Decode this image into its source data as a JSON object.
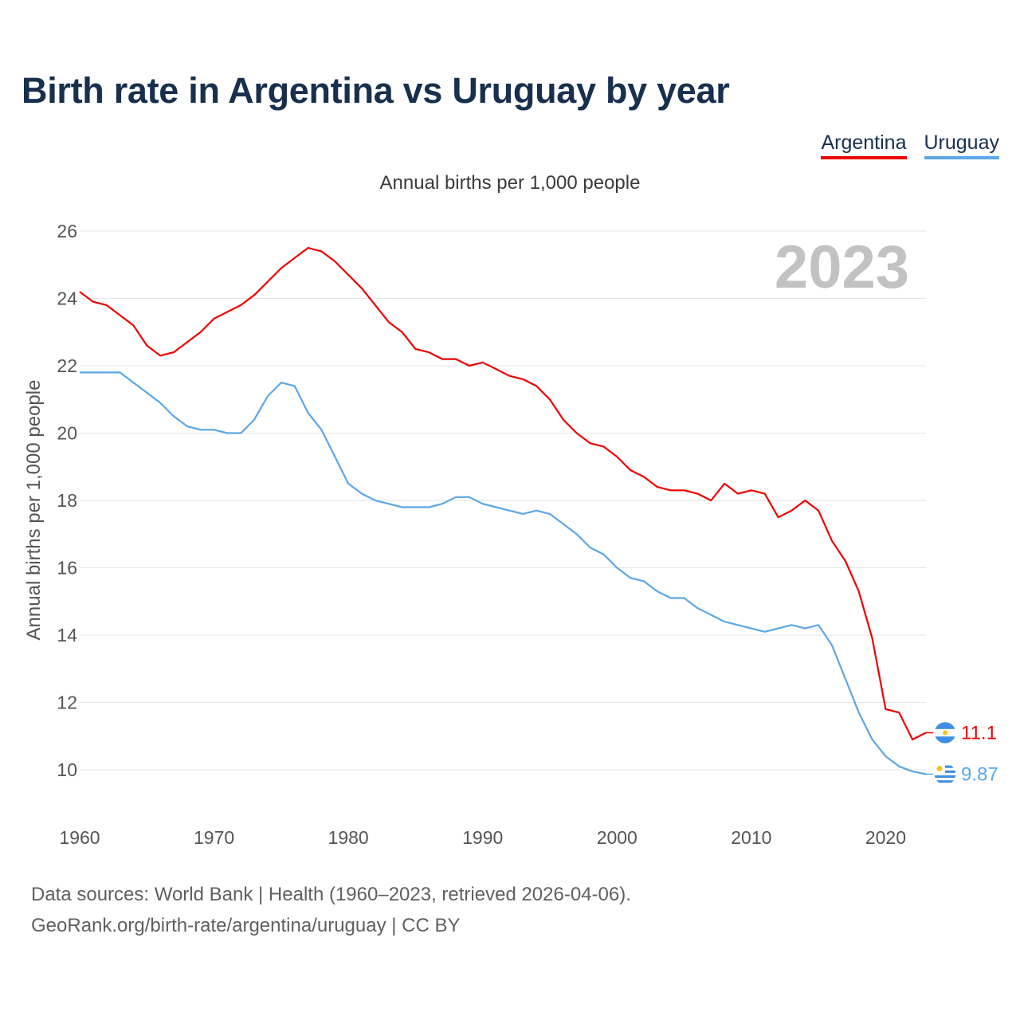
{
  "title": "Birth rate in Argentina vs Uruguay by year",
  "subtitle": "Annual births per 1,000 people",
  "year_watermark": "2023",
  "footer": {
    "line1": "Data sources: World Bank | Health (1960–2023, retrieved 2026-04-06).",
    "line2": "GeoRank.org/birth-rate/argentina/uruguay | CC BY"
  },
  "colors": {
    "argentina": "#ee0000",
    "uruguay": "#5ba7e8",
    "text_dark": "#18304e"
  },
  "chart_data": {
    "type": "line",
    "title": "Birth rate in Argentina vs Uruguay by year",
    "xlabel": "",
    "ylabel": "Annual births per 1,000 people",
    "xlim": [
      1960,
      2023
    ],
    "ylim": [
      9,
      26
    ],
    "x_ticks": [
      1960,
      1970,
      1980,
      1990,
      2000,
      2010,
      2020
    ],
    "y_ticks": [
      10,
      12,
      14,
      16,
      18,
      20,
      22,
      24,
      26
    ],
    "grid": true,
    "legend_position": "top-right",
    "x": [
      1960,
      1961,
      1962,
      1963,
      1964,
      1965,
      1966,
      1967,
      1968,
      1969,
      1970,
      1971,
      1972,
      1973,
      1974,
      1975,
      1976,
      1977,
      1978,
      1979,
      1980,
      1981,
      1982,
      1983,
      1984,
      1985,
      1986,
      1987,
      1988,
      1989,
      1990,
      1991,
      1992,
      1993,
      1994,
      1995,
      1996,
      1997,
      1998,
      1999,
      2000,
      2001,
      2002,
      2003,
      2004,
      2005,
      2006,
      2007,
      2008,
      2009,
      2010,
      2011,
      2012,
      2013,
      2014,
      2015,
      2016,
      2017,
      2018,
      2019,
      2020,
      2021,
      2022,
      2023
    ],
    "series": [
      {
        "name": "Argentina",
        "color": "#ee0000",
        "end_label": "11.1",
        "values": [
          24.2,
          23.9,
          23.8,
          23.5,
          23.2,
          22.6,
          22.3,
          22.4,
          22.7,
          23.0,
          23.4,
          23.6,
          23.8,
          24.1,
          24.5,
          24.9,
          25.2,
          25.5,
          25.4,
          25.1,
          24.7,
          24.3,
          23.8,
          23.3,
          23.0,
          22.5,
          22.4,
          22.2,
          22.2,
          22.0,
          22.1,
          21.9,
          21.7,
          21.6,
          21.4,
          21.0,
          20.4,
          20.0,
          19.7,
          19.6,
          19.3,
          18.9,
          18.7,
          18.4,
          18.3,
          18.3,
          18.2,
          18.0,
          18.5,
          18.2,
          18.3,
          18.2,
          17.5,
          17.7,
          18.0,
          17.7,
          16.8,
          16.2,
          15.3,
          13.9,
          11.8,
          11.7,
          10.9,
          11.1
        ]
      },
      {
        "name": "Uruguay",
        "color": "#5ba7e8",
        "end_label": "9.87",
        "values": [
          21.8,
          21.8,
          21.8,
          21.8,
          21.5,
          21.2,
          20.9,
          20.5,
          20.2,
          20.1,
          20.1,
          20.0,
          20.0,
          20.4,
          21.1,
          21.5,
          21.4,
          20.6,
          20.1,
          19.3,
          18.5,
          18.2,
          18.0,
          17.9,
          17.8,
          17.8,
          17.8,
          17.9,
          18.1,
          18.1,
          17.9,
          17.8,
          17.7,
          17.6,
          17.7,
          17.6,
          17.3,
          17.0,
          16.6,
          16.4,
          16.0,
          15.7,
          15.6,
          15.3,
          15.1,
          15.1,
          14.8,
          14.6,
          14.4,
          14.3,
          14.2,
          14.1,
          14.2,
          14.3,
          14.2,
          14.3,
          13.7,
          12.7,
          11.7,
          10.9,
          10.4,
          10.1,
          9.95,
          9.87
        ]
      }
    ]
  }
}
